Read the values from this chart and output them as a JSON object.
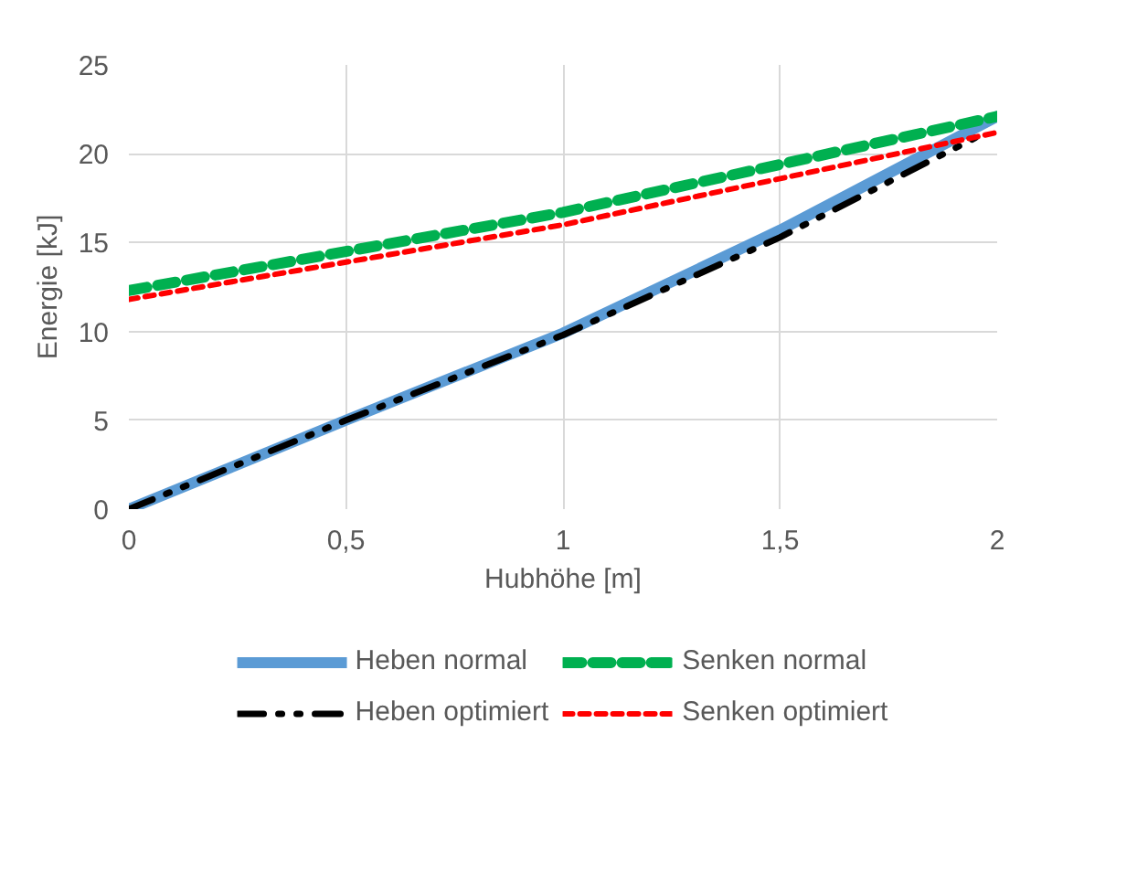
{
  "chart_data": {
    "type": "line",
    "xlabel": "Hubhöhe [m]",
    "ylabel": "Energie [kJ]",
    "xlim": [
      0,
      2
    ],
    "ylim": [
      0,
      25
    ],
    "xticks": [
      0,
      {
        "value": 0.5,
        "label": "0,5"
      },
      1,
      {
        "value": 1.5,
        "label": "1,5"
      },
      2
    ],
    "yticks": [
      0,
      5,
      10,
      15,
      20,
      25
    ],
    "grid": true,
    "legend": "bottom",
    "series": [
      {
        "name": "Heben normal",
        "color": "#5b9bd5",
        "line_style": "solid",
        "x": [
          0,
          0.5,
          1,
          1.5,
          2
        ],
        "values": [
          0,
          5.0,
          9.9,
          15.7,
          22.1
        ]
      },
      {
        "name": "Senken normal",
        "color": "#00b050",
        "line_style": "dashed",
        "x": [
          0,
          1,
          2
        ],
        "values": [
          12.3,
          16.7,
          22.1
        ]
      },
      {
        "name": "Heben optimiert",
        "color": "#000000",
        "line_style": "dashdot",
        "x": [
          0,
          0.5,
          1,
          1.5,
          1.95
        ],
        "values": [
          0,
          5.0,
          9.8,
          15.3,
          20.9
        ]
      },
      {
        "name": "Senken optimiert",
        "color": "#ff0000",
        "line_style": "dotted",
        "x": [
          0,
          1,
          2
        ],
        "values": [
          11.8,
          16.0,
          21.2
        ]
      }
    ]
  }
}
